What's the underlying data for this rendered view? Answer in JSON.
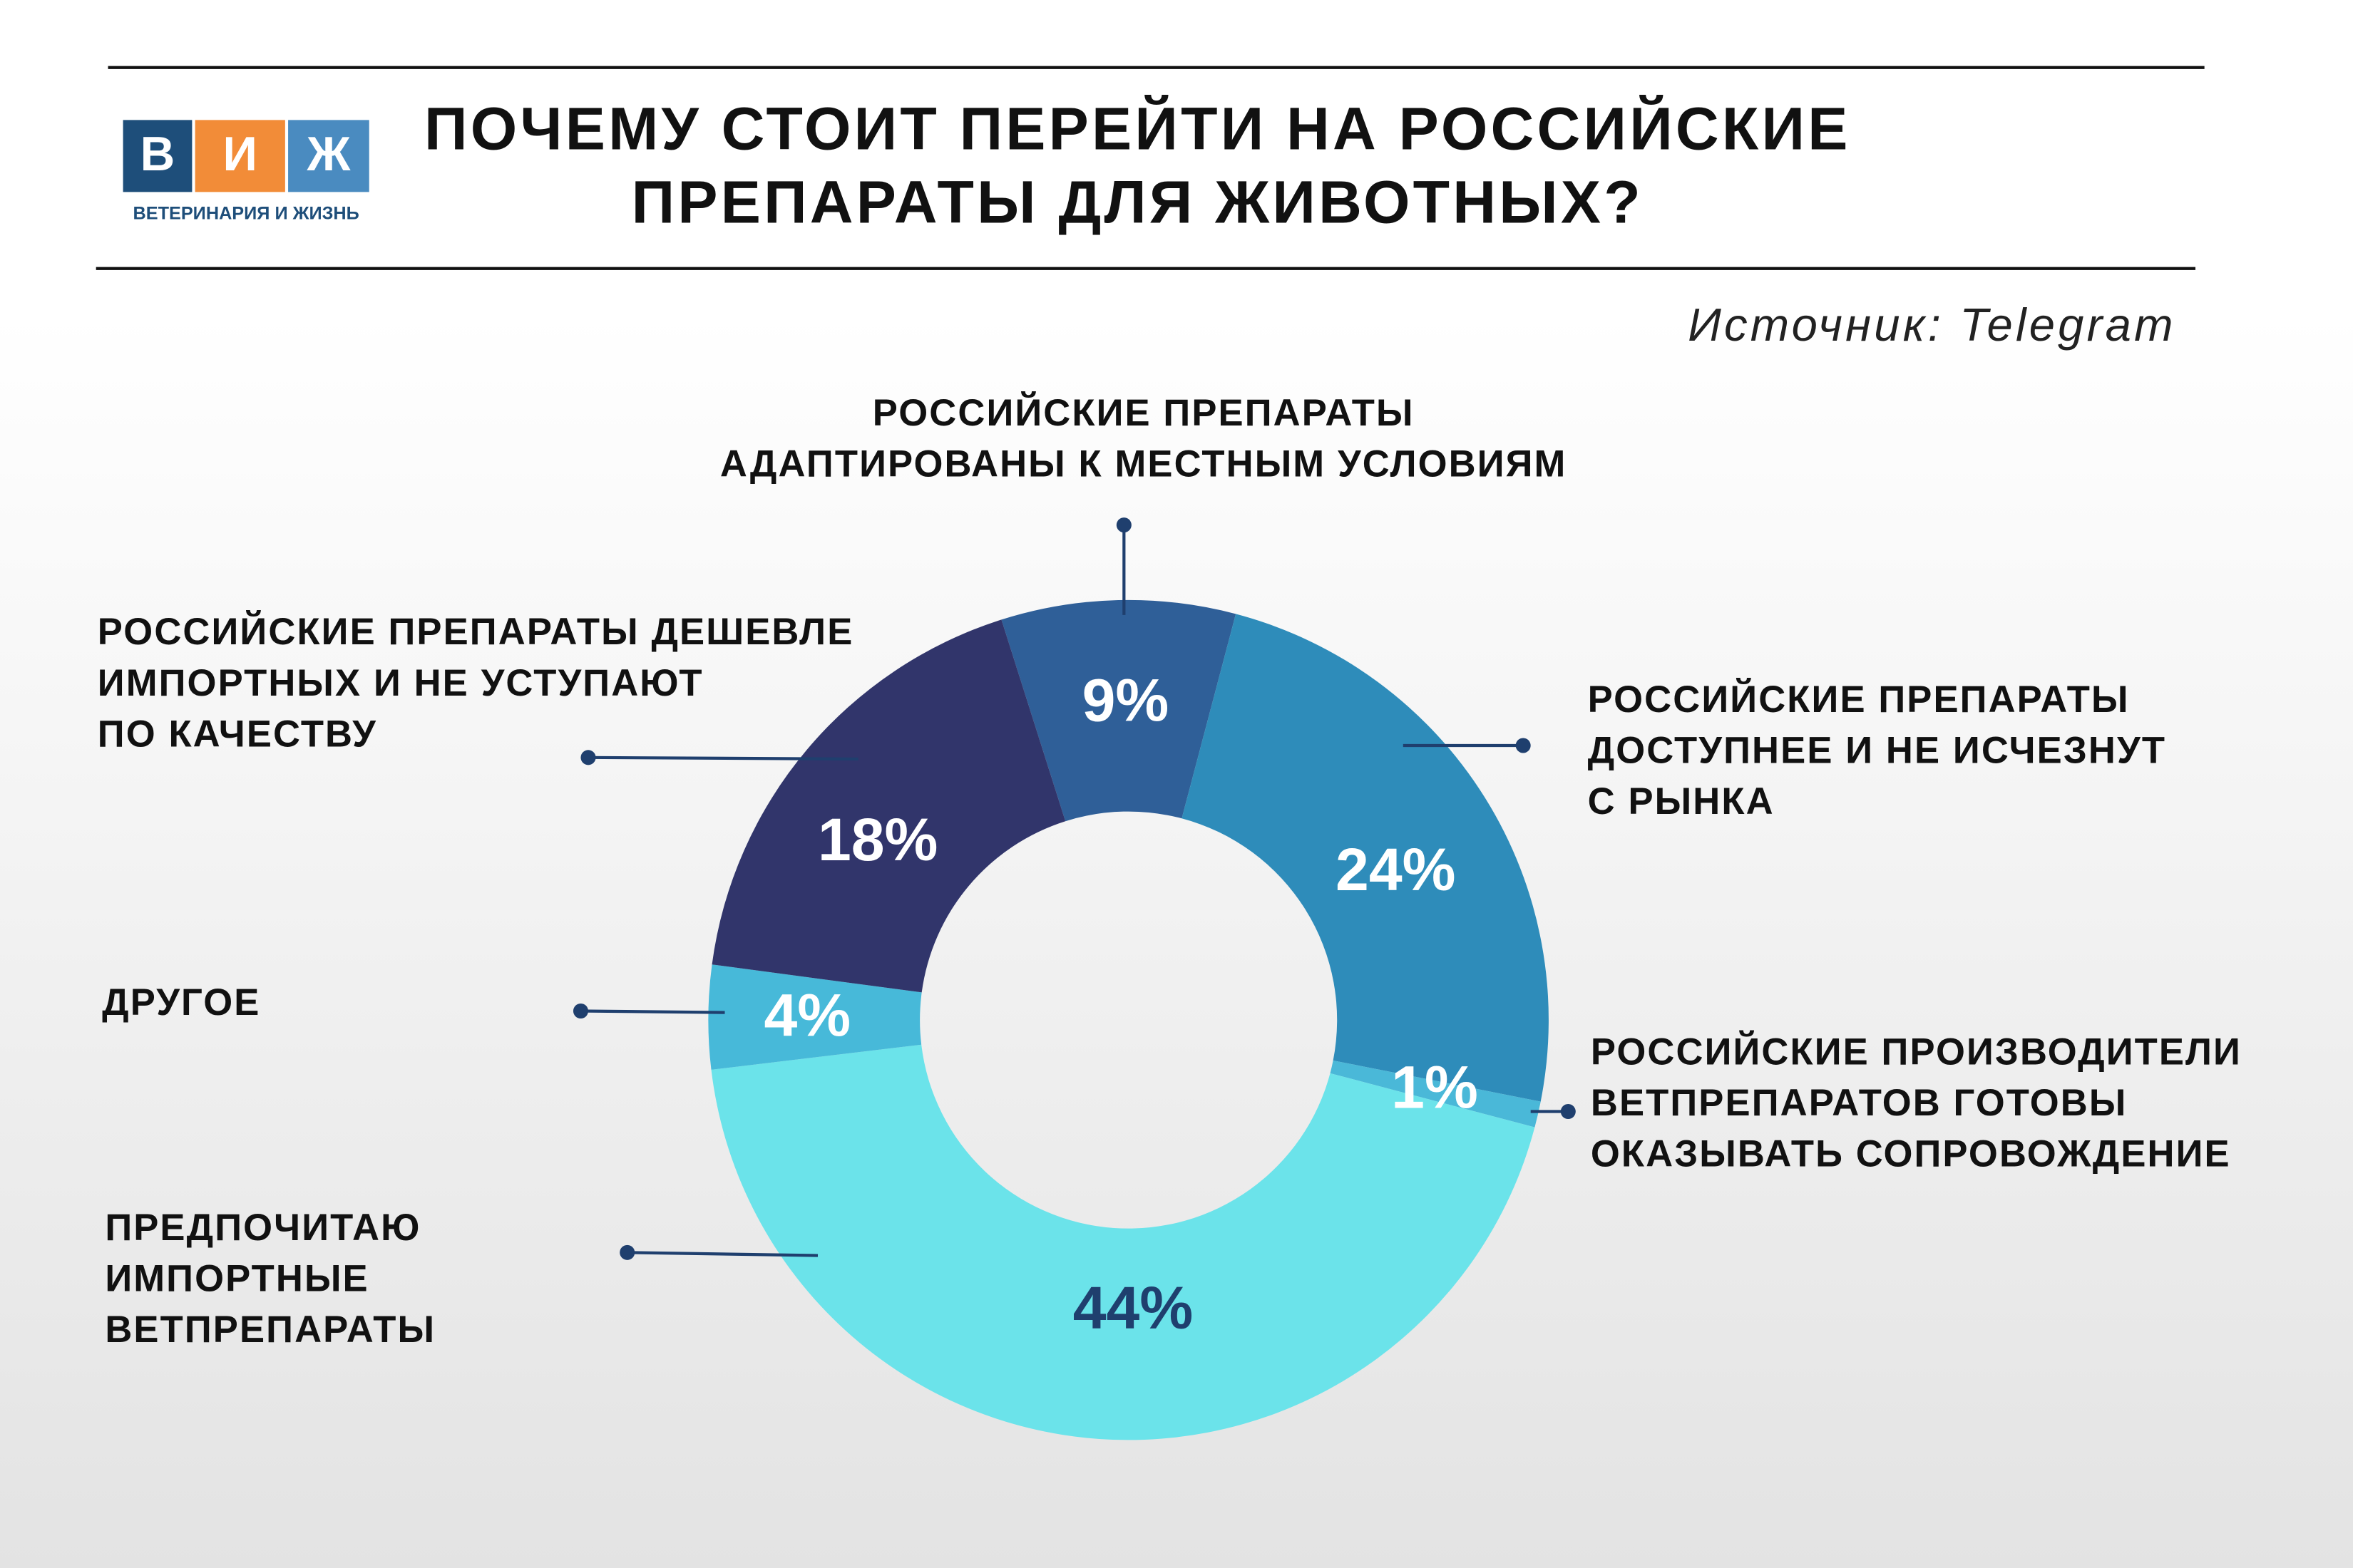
{
  "logo": {
    "letters": [
      "В",
      "И",
      "Ж"
    ],
    "caption": "ВЕТЕРИНАРИЯ И ЖИЗНЬ"
  },
  "chart_data": {
    "type": "pie",
    "title": [
      "ПОЧЕМУ СТОИТ ПЕРЕЙТИ НА РОССИЙСКИЕ",
      "ПРЕПАРАТЫ ДЛЯ ЖИВОТНЫХ?"
    ],
    "source": "Источник: Telegram",
    "categories": [
      "РОССИЙСКИЕ ПРЕПАРАТЫ\nАДАПТИРОВАНЫ К МЕСТНЫМ УСЛОВИЯМ",
      "РОССИЙСКИЕ ПРЕПАРАТЫ\nДОСТУПНЕЕ И НЕ ИСЧЕЗНУТ\nС РЫНКА",
      "РОССИЙСКИЕ ПРОИЗВОДИТЕЛИ\nВЕТПРЕПАРАТОВ ГОТОВЫ\nОКАЗЫВАТЬ СОПРОВОЖДЕНИЕ",
      "ПРЕДПОЧИТАЮ\nИМПОРТНЫЕ\nВЕТПРЕПАРАТЫ",
      "ДРУГОЕ",
      "РОССИЙСКИЕ ПРЕПАРАТЫ ДЕШЕВЛЕ\nИМПОРТНЫХ И НЕ УСТУПАЮТ\nПО КАЧЕСТВУ"
    ],
    "values": [
      9,
      24,
      1,
      44,
      4,
      18
    ],
    "value_labels": [
      "9%",
      "24%",
      "1%",
      "44%",
      "4%",
      "18%"
    ],
    "colors": [
      "#2f5f98",
      "#2e8cba",
      "#4ab8d8",
      "#6be3ea",
      "#47b9d9",
      "#31356b"
    ],
    "value_label_colors": [
      "#ffffff",
      "#ffffff",
      "#ffffff",
      "#1f3f6e",
      "#ffffff",
      "#ffffff"
    ]
  }
}
